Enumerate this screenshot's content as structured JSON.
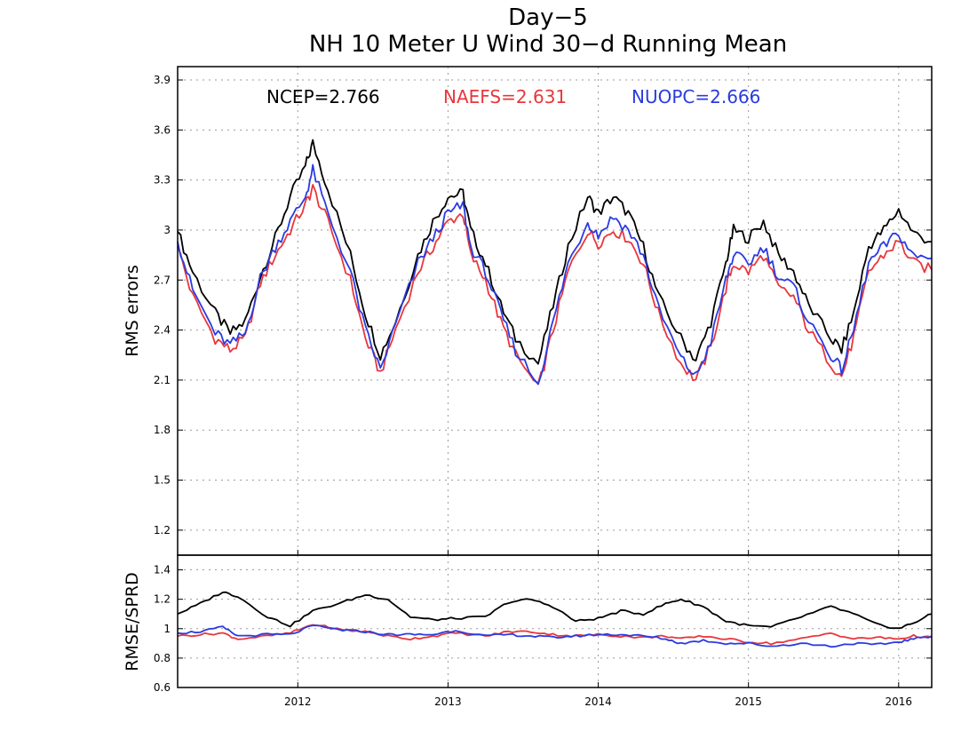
{
  "chart_data": [
    {
      "type": "line",
      "title": "Day−5",
      "subtitle": "NH 10 Meter U Wind 30−d Running Mean",
      "ylabel": "RMS errors",
      "xlim": [
        2011.2,
        2016.22
      ],
      "ylim": [
        1.05,
        3.98
      ],
      "yticks": [
        1.2,
        1.5,
        1.8,
        2.1,
        2.4,
        2.7,
        3.0,
        3.3,
        3.6,
        3.9
      ],
      "ytick_labels": [
        "1.2",
        "1.5",
        "1.8",
        "2.1",
        "2.4",
        "2.7",
        "3",
        "3.3",
        "3.6",
        "3.9"
      ],
      "xticks": [
        2012,
        2013,
        2014,
        2015,
        2016
      ],
      "xtick_labels": [
        "2012",
        "2013",
        "2014",
        "2015",
        "2016"
      ],
      "grid": true,
      "legend_placement": "top",
      "series": [
        {
          "name": "NCEP",
          "legend_label": "NCEP=2.766",
          "color": "#000000",
          "x": [
            2011.2,
            2011.3,
            2011.45,
            2011.55,
            2011.65,
            2011.75,
            2011.85,
            2011.95,
            2012.05,
            2012.1,
            2012.2,
            2012.35,
            2012.45,
            2012.55,
            2012.65,
            2012.8,
            2012.9,
            2013.0,
            2013.1,
            2013.15,
            2013.25,
            2013.35,
            2013.45,
            2013.6,
            2013.7,
            2013.8,
            2013.93,
            2014.0,
            2014.1,
            2014.2,
            2014.3,
            2014.4,
            2014.55,
            2014.65,
            2014.75,
            2014.85,
            2014.9,
            2015.0,
            2015.1,
            2015.2,
            2015.3,
            2015.4,
            2015.55,
            2015.62,
            2015.7,
            2015.8,
            2015.9,
            2016.0,
            2016.1,
            2016.22
          ],
          "y": [
            2.99,
            2.75,
            2.5,
            2.38,
            2.45,
            2.72,
            2.95,
            3.2,
            3.38,
            3.52,
            3.25,
            2.85,
            2.5,
            2.25,
            2.45,
            2.85,
            3.05,
            3.2,
            3.22,
            3.0,
            2.8,
            2.55,
            2.35,
            2.2,
            2.55,
            2.9,
            3.2,
            3.1,
            3.2,
            3.1,
            2.9,
            2.6,
            2.35,
            2.22,
            2.45,
            2.8,
            3.0,
            2.95,
            3.05,
            2.85,
            2.75,
            2.55,
            2.35,
            2.28,
            2.5,
            2.9,
            3.0,
            3.12,
            2.98,
            2.93
          ]
        },
        {
          "name": "NAEFS",
          "legend_label": "NAEFS=2.631",
          "color": "#e8373c",
          "x": [
            2011.2,
            2011.3,
            2011.45,
            2011.55,
            2011.65,
            2011.75,
            2011.85,
            2011.95,
            2012.05,
            2012.1,
            2012.2,
            2012.35,
            2012.45,
            2012.55,
            2012.65,
            2012.8,
            2012.9,
            2013.0,
            2013.1,
            2013.15,
            2013.25,
            2013.35,
            2013.45,
            2013.6,
            2013.7,
            2013.8,
            2013.93,
            2014.0,
            2014.1,
            2014.2,
            2014.3,
            2014.4,
            2014.55,
            2014.65,
            2014.75,
            2014.85,
            2014.9,
            2015.0,
            2015.1,
            2015.2,
            2015.3,
            2015.4,
            2015.55,
            2015.62,
            2015.7,
            2015.8,
            2015.9,
            2016.0,
            2016.1,
            2016.22
          ],
          "y": [
            2.9,
            2.6,
            2.35,
            2.28,
            2.35,
            2.68,
            2.85,
            3.0,
            3.15,
            3.25,
            3.05,
            2.7,
            2.35,
            2.14,
            2.4,
            2.75,
            2.9,
            3.05,
            3.1,
            2.85,
            2.7,
            2.45,
            2.25,
            2.05,
            2.4,
            2.75,
            3.0,
            2.92,
            3.0,
            2.95,
            2.8,
            2.5,
            2.2,
            2.1,
            2.3,
            2.65,
            2.8,
            2.75,
            2.85,
            2.65,
            2.6,
            2.4,
            2.2,
            2.12,
            2.35,
            2.75,
            2.85,
            2.93,
            2.8,
            2.76
          ]
        },
        {
          "name": "NUOPC",
          "legend_label": "NUOPC=2.666",
          "color": "#2a3be0",
          "x": [
            2011.2,
            2011.3,
            2011.45,
            2011.55,
            2011.65,
            2011.75,
            2011.85,
            2011.95,
            2012.05,
            2012.1,
            2012.2,
            2012.35,
            2012.45,
            2012.55,
            2012.65,
            2012.8,
            2012.9,
            2013.0,
            2013.1,
            2013.15,
            2013.25,
            2013.35,
            2013.45,
            2013.6,
            2013.7,
            2013.8,
            2013.93,
            2014.0,
            2014.1,
            2014.2,
            2014.3,
            2014.4,
            2014.55,
            2014.65,
            2014.75,
            2014.85,
            2014.9,
            2015.0,
            2015.1,
            2015.2,
            2015.3,
            2015.4,
            2015.55,
            2015.62,
            2015.7,
            2015.8,
            2015.9,
            2016.0,
            2016.1,
            2016.22
          ],
          "y": [
            2.93,
            2.64,
            2.38,
            2.31,
            2.38,
            2.71,
            2.9,
            3.05,
            3.2,
            3.36,
            3.1,
            2.75,
            2.4,
            2.16,
            2.43,
            2.8,
            2.95,
            3.1,
            3.15,
            2.9,
            2.75,
            2.5,
            2.28,
            2.08,
            2.45,
            2.8,
            3.05,
            2.97,
            3.08,
            3.0,
            2.85,
            2.53,
            2.23,
            2.12,
            2.33,
            2.7,
            2.85,
            2.8,
            2.9,
            2.72,
            2.66,
            2.45,
            2.25,
            2.16,
            2.4,
            2.8,
            2.9,
            2.98,
            2.84,
            2.83
          ]
        }
      ]
    },
    {
      "type": "line",
      "ylabel": "RMSE/SPRD",
      "xlim": [
        2011.2,
        2016.22
      ],
      "ylim": [
        0.6,
        1.5
      ],
      "yticks": [
        0.6,
        0.8,
        1.0,
        1.2,
        1.4
      ],
      "ytick_labels": [
        "0.6",
        "0.8",
        "1",
        "1.2",
        "1.4"
      ],
      "xticks": [
        2012,
        2013,
        2014,
        2015,
        2016
      ],
      "xtick_labels": [
        "2012",
        "2013",
        "2014",
        "2015",
        "2016"
      ],
      "grid": true,
      "series": [
        {
          "name": "NCEP",
          "color": "#000000",
          "x": [
            2011.2,
            2011.35,
            2011.5,
            2011.6,
            2011.8,
            2011.95,
            2012.1,
            2012.3,
            2012.45,
            2012.6,
            2012.75,
            2012.9,
            2013.05,
            2013.25,
            2013.4,
            2013.55,
            2013.7,
            2013.85,
            2014.0,
            2014.15,
            2014.3,
            2014.45,
            2014.55,
            2014.7,
            2014.85,
            2015.0,
            2015.15,
            2015.35,
            2015.55,
            2015.7,
            2015.85,
            2016.0,
            2016.1,
            2016.22
          ],
          "y": [
            1.1,
            1.17,
            1.25,
            1.22,
            1.08,
            1.02,
            1.12,
            1.18,
            1.23,
            1.2,
            1.08,
            1.06,
            1.07,
            1.08,
            1.18,
            1.2,
            1.15,
            1.05,
            1.07,
            1.12,
            1.1,
            1.17,
            1.2,
            1.15,
            1.05,
            1.02,
            1.01,
            1.08,
            1.15,
            1.1,
            1.03,
            1.0,
            1.04,
            1.1
          ]
        },
        {
          "name": "NAEFS",
          "color": "#e8373c",
          "x": [
            2011.2,
            2011.35,
            2011.5,
            2011.6,
            2011.8,
            2011.95,
            2012.1,
            2012.3,
            2012.45,
            2012.6,
            2012.75,
            2012.9,
            2013.05,
            2013.25,
            2013.4,
            2013.55,
            2013.7,
            2013.85,
            2014.0,
            2014.15,
            2014.3,
            2014.45,
            2014.55,
            2014.7,
            2014.85,
            2015.0,
            2015.15,
            2015.35,
            2015.55,
            2015.7,
            2015.85,
            2016.0,
            2016.1,
            2016.22
          ],
          "y": [
            0.95,
            0.96,
            0.97,
            0.93,
            0.95,
            0.97,
            1.03,
            0.99,
            0.98,
            0.95,
            0.93,
            0.95,
            0.97,
            0.95,
            0.98,
            0.98,
            0.96,
            0.95,
            0.96,
            0.95,
            0.94,
            0.95,
            0.93,
            0.95,
            0.93,
            0.91,
            0.9,
            0.93,
            0.97,
            0.93,
            0.94,
            0.93,
            0.95,
            0.94
          ]
        },
        {
          "name": "NUOPC",
          "color": "#2a3be0",
          "x": [
            2011.2,
            2011.35,
            2011.5,
            2011.6,
            2011.8,
            2011.95,
            2012.1,
            2012.3,
            2012.45,
            2012.6,
            2012.75,
            2012.9,
            2013.05,
            2013.25,
            2013.4,
            2013.55,
            2013.7,
            2013.85,
            2014.0,
            2014.15,
            2014.3,
            2014.45,
            2014.55,
            2014.7,
            2014.85,
            2015.0,
            2015.15,
            2015.35,
            2015.55,
            2015.7,
            2015.85,
            2016.0,
            2016.1,
            2016.22
          ],
          "y": [
            0.97,
            0.98,
            1.01,
            0.95,
            0.96,
            0.96,
            1.02,
            0.99,
            0.98,
            0.96,
            0.96,
            0.96,
            0.99,
            0.95,
            0.96,
            0.95,
            0.94,
            0.95,
            0.96,
            0.96,
            0.95,
            0.93,
            0.9,
            0.92,
            0.9,
            0.9,
            0.88,
            0.9,
            0.88,
            0.9,
            0.89,
            0.91,
            0.93,
            0.95
          ]
        }
      ]
    }
  ]
}
